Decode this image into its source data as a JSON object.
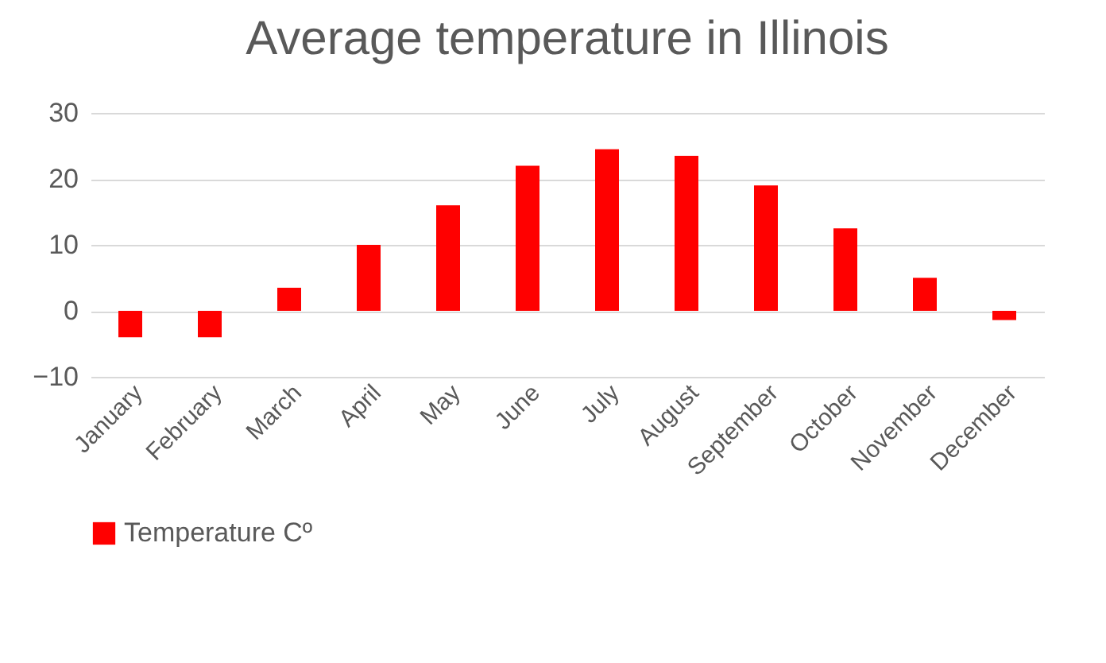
{
  "chart_data": {
    "type": "bar",
    "title": "Average temperature in Illinois",
    "categories": [
      "January",
      "February",
      "March",
      "April",
      "May",
      "June",
      "July",
      "August",
      "September",
      "October",
      "November",
      "December"
    ],
    "series": [
      {
        "name": "Temperature Cº",
        "color": "#ff0000",
        "values": [
          -4,
          -4,
          3.5,
          10,
          16,
          22,
          24.5,
          23.5,
          19,
          12.5,
          5,
          -1.4
        ]
      }
    ],
    "ylim": [
      -10,
      30
    ],
    "yticks": [
      -10,
      0,
      10,
      20,
      30
    ],
    "grid": "y",
    "legend": "bottom"
  }
}
